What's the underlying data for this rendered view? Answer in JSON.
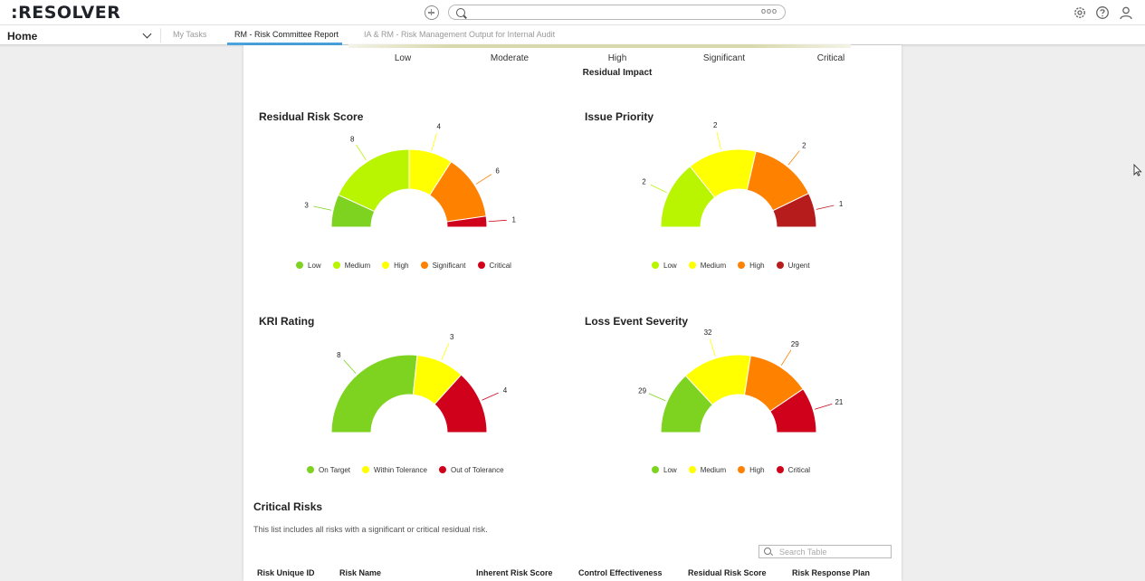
{
  "app": {
    "logo": ":RESOLVER"
  },
  "topbar": {
    "more_glyph": "ooo"
  },
  "nav": {
    "home_label": "Home",
    "tabs": [
      {
        "label": "My Tasks",
        "active": false
      },
      {
        "label": "RM - Risk Committee Report",
        "active": true
      },
      {
        "label": "IA & RM - Risk Management Output for Internal Audit",
        "active": false
      }
    ]
  },
  "heatmap": {
    "categories": [
      "Low",
      "Moderate",
      "High",
      "Significant",
      "Critical"
    ],
    "axis_label": "Residual Impact"
  },
  "chart_data": [
    {
      "type": "pie",
      "variant": "half-donut",
      "title": "Residual Risk Score",
      "labels": [
        "Low",
        "Medium",
        "High",
        "Significant",
        "Critical"
      ],
      "values": [
        3,
        8,
        4,
        6,
        1
      ],
      "colors": [
        "#7ed321",
        "#b9f400",
        "#ffff00",
        "#ff8100",
        "#d0021b"
      ],
      "legend": "bottom"
    },
    {
      "type": "pie",
      "variant": "half-donut",
      "title": "Issue Priority",
      "labels": [
        "Low",
        "Medium",
        "High",
        "Urgent"
      ],
      "values": [
        2,
        2,
        2,
        1
      ],
      "colors": [
        "#b9f400",
        "#ffff00",
        "#ff8100",
        "#b71c1c"
      ],
      "legend": "bottom"
    },
    {
      "type": "pie",
      "variant": "half-donut",
      "title": "KRI Rating",
      "labels": [
        "On Target",
        "Within Tolerance",
        "Out of Tolerance"
      ],
      "values": [
        8,
        3,
        4
      ],
      "colors": [
        "#7ed321",
        "#ffff00",
        "#d0021b"
      ],
      "legend": "bottom"
    },
    {
      "type": "pie",
      "variant": "half-donut",
      "title": "Loss Event Severity",
      "labels": [
        "Low",
        "Medium",
        "High",
        "Critical"
      ],
      "values": [
        29,
        32,
        29,
        21
      ],
      "colors": [
        "#7ed321",
        "#ffff00",
        "#ff8100",
        "#d0021b"
      ],
      "legend": "bottom"
    }
  ],
  "critical_risks": {
    "title": "Critical Risks",
    "description": "This list includes all risks with a significant or critical residual risk.",
    "search_placeholder": "Search Table",
    "columns": [
      "Risk Unique ID",
      "Risk Name",
      "Inherent Risk Score",
      "Control Effectiveness",
      "Residual Risk Score",
      "Risk Response Plan"
    ]
  }
}
